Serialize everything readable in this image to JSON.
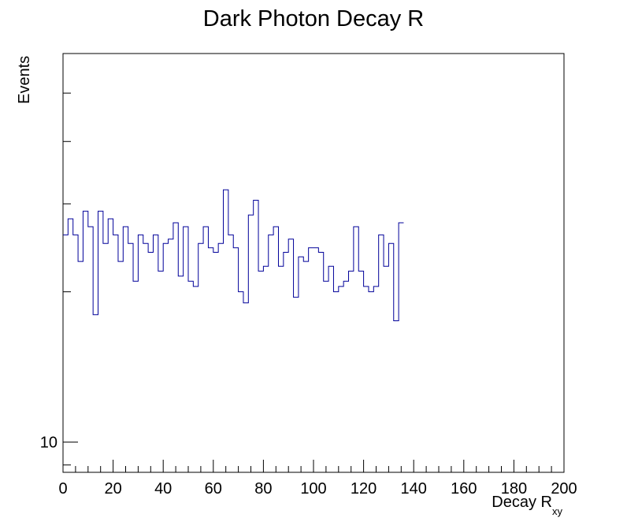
{
  "chart_data": {
    "type": "histogram",
    "title": "Dark Photon Decay R",
    "xlabel": "Decay R",
    "xlabel_subscript": "xy",
    "ylabel": "Events",
    "xlim": [
      0,
      200
    ],
    "ylim": [
      8.7,
      60
    ],
    "y_scale": "log",
    "grid": false,
    "legend": "none",
    "line_color": "#000099",
    "bin_width": 2,
    "x_ticks": [
      "0",
      "20",
      "40",
      "60",
      "80",
      "100",
      "120",
      "140",
      "160",
      "180",
      "200"
    ],
    "y_tick_labels": [
      {
        "value": 10,
        "label": "10"
      }
    ],
    "values": [
      26,
      28,
      26,
      23,
      29,
      27,
      18,
      29,
      25,
      28,
      26,
      23,
      27,
      25,
      21,
      26,
      25,
      24,
      26,
      22,
      25,
      25.5,
      27.5,
      21.5,
      27,
      21,
      20.5,
      25,
      27,
      24.5,
      24,
      25,
      32,
      26,
      24.5,
      20,
      19,
      28.5,
      30.5,
      22,
      22.5,
      26,
      27,
      22.5,
      24,
      25.5,
      19.5,
      23.5,
      23,
      24.5,
      24.5,
      24,
      21,
      22.5,
      20,
      20.5,
      21,
      22,
      27,
      22,
      20.5,
      20,
      20.5,
      26,
      22.5,
      25,
      17.5,
      27.5
    ]
  }
}
